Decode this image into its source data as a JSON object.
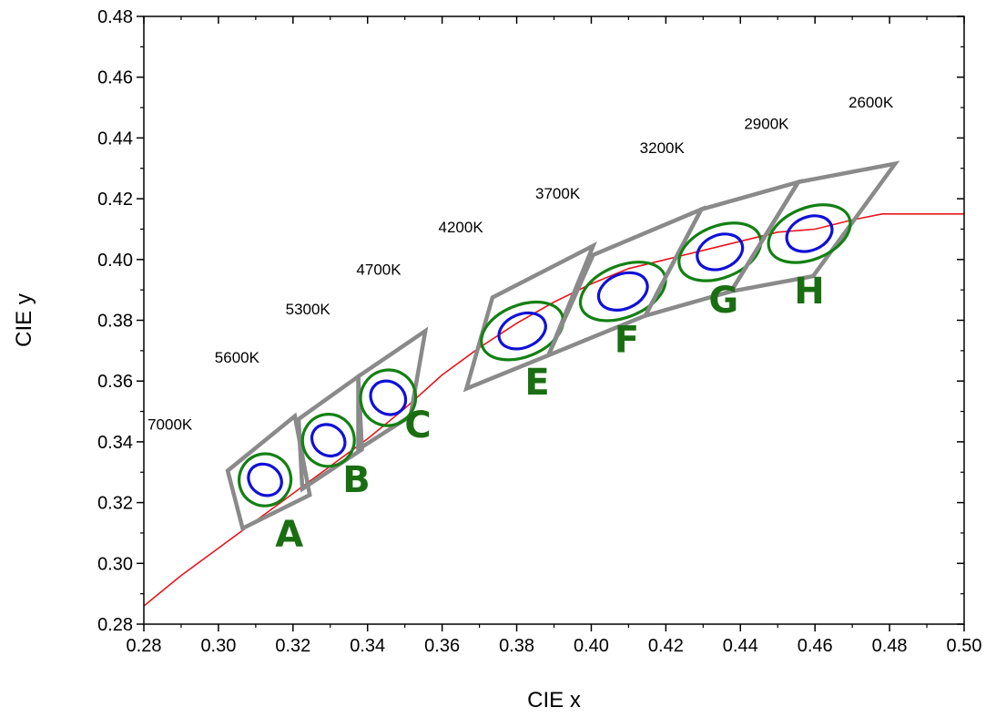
{
  "chart_data": {
    "type": "scatter",
    "title": "",
    "xlabel": "CIE x",
    "ylabel": "CIE y",
    "xlim": [
      0.28,
      0.5
    ],
    "ylim": [
      0.28,
      0.48
    ],
    "x_ticks": [
      "0.28",
      "0.30",
      "0.32",
      "0.34",
      "0.36",
      "0.38",
      "0.40",
      "0.42",
      "0.44",
      "0.46",
      "0.48",
      "0.50"
    ],
    "y_ticks": [
      "0.28",
      "0.30",
      "0.32",
      "0.34",
      "0.36",
      "0.38",
      "0.40",
      "0.42",
      "0.44",
      "0.46",
      "0.48"
    ],
    "grid": false,
    "colors": {
      "locus": "#e8141c",
      "bin_outline": "#8a8a8a",
      "outer_ellipse": "#138013",
      "inner_ellipse": "#1010d8",
      "bin_letter": "#1a6e12"
    },
    "locus_curve": {
      "x": [
        0.28,
        0.29,
        0.3,
        0.31,
        0.32,
        0.33,
        0.34,
        0.35,
        0.36,
        0.37,
        0.38,
        0.39,
        0.4,
        0.41,
        0.42,
        0.43,
        0.44,
        0.45,
        0.46,
        0.47,
        0.478,
        0.5
      ],
      "y": [
        0.286,
        0.296,
        0.305,
        0.314,
        0.323,
        0.332,
        0.341,
        0.351,
        0.362,
        0.371,
        0.379,
        0.386,
        0.392,
        0.397,
        0.4,
        0.403,
        0.406,
        0.409,
        0.41,
        0.413,
        0.415,
        0.415
      ]
    },
    "cct_labels": [
      {
        "text": "7000K",
        "x": 0.287,
        "y": 0.344
      },
      {
        "text": "5600K",
        "x": 0.305,
        "y": 0.366
      },
      {
        "text": "5300K",
        "x": 0.324,
        "y": 0.382
      },
      {
        "text": "4700K",
        "x": 0.343,
        "y": 0.395
      },
      {
        "text": "4200K",
        "x": 0.365,
        "y": 0.409
      },
      {
        "text": "3700K",
        "x": 0.391,
        "y": 0.42
      },
      {
        "text": "3200K",
        "x": 0.419,
        "y": 0.435
      },
      {
        "text": "2900K",
        "x": 0.447,
        "y": 0.443
      },
      {
        "text": "2600K",
        "x": 0.475,
        "y": 0.45
      }
    ],
    "bins": [
      {
        "label": "A",
        "label_xy": [
          0.319,
          0.3055
        ],
        "quad": [
          [
            0.3025,
            0.3305
          ],
          [
            0.3205,
            0.3485
          ],
          [
            0.3245,
            0.3225
          ],
          [
            0.3065,
            0.3115
          ]
        ],
        "center": [
          0.3125,
          0.3275
        ],
        "outer_axes": [
          0.007,
          0.0085
        ],
        "inner_axes": [
          0.004,
          0.0057
        ],
        "tilt": -55
      },
      {
        "label": "B",
        "label_xy": [
          0.337,
          0.3235
        ],
        "quad": [
          [
            0.3215,
            0.3475
          ],
          [
            0.3375,
            0.3615
          ],
          [
            0.3385,
            0.3375
          ],
          [
            0.3225,
            0.3245
          ]
        ],
        "center": [
          0.3295,
          0.3405
        ],
        "outer_axes": [
          0.007,
          0.0085
        ],
        "inner_axes": [
          0.004,
          0.0057
        ],
        "tilt": -55
      },
      {
        "label": "C",
        "label_xy": [
          0.3535,
          0.3415
        ],
        "quad": [
          [
            0.3375,
            0.3615
          ],
          [
            0.3555,
            0.3765
          ],
          [
            0.3515,
            0.3485
          ],
          [
            0.3375,
            0.3375
          ]
        ],
        "center": [
          0.3455,
          0.3545
        ],
        "outer_axes": [
          0.0075,
          0.009
        ],
        "inner_axes": [
          0.0043,
          0.006
        ],
        "tilt": -55
      },
      {
        "label": "E",
        "label_xy": [
          0.3855,
          0.3555
        ],
        "quad": [
          [
            0.3735,
            0.3875
          ],
          [
            0.4005,
            0.4045
          ],
          [
            0.3885,
            0.3685
          ],
          [
            0.3665,
            0.3575
          ]
        ],
        "center": [
          0.3815,
          0.3765
        ],
        "outer_axes": [
          0.0115,
          0.0085
        ],
        "inner_axes": [
          0.0065,
          0.0055
        ],
        "tilt": -22
      },
      {
        "label": "F",
        "label_xy": [
          0.4095,
          0.3695
        ],
        "quad": [
          [
            0.4005,
            0.4015
          ],
          [
            0.4295,
            0.4165
          ],
          [
            0.4145,
            0.3815
          ],
          [
            0.3885,
            0.3685
          ]
        ],
        "center": [
          0.4085,
          0.3895
        ],
        "outer_axes": [
          0.012,
          0.0085
        ],
        "inner_axes": [
          0.0068,
          0.0057
        ],
        "tilt": -22
      },
      {
        "label": "G",
        "label_xy": [
          0.4355,
          0.3825
        ],
        "quad": [
          [
            0.4295,
            0.4165
          ],
          [
            0.4555,
            0.4255
          ],
          [
            0.4375,
            0.3895
          ],
          [
            0.4145,
            0.3815
          ]
        ],
        "center": [
          0.4345,
          0.4025
        ],
        "outer_axes": [
          0.0115,
          0.0085
        ],
        "inner_axes": [
          0.0063,
          0.0055
        ],
        "tilt": -22
      },
      {
        "label": "H",
        "label_xy": [
          0.4585,
          0.3855
        ],
        "quad": [
          [
            0.4555,
            0.4255
          ],
          [
            0.4815,
            0.4315
          ],
          [
            0.4595,
            0.3945
          ],
          [
            0.4375,
            0.3895
          ]
        ],
        "center": [
          0.4585,
          0.4085
        ],
        "outer_axes": [
          0.0115,
          0.0085
        ],
        "inner_axes": [
          0.0063,
          0.0055
        ],
        "tilt": -22
      }
    ]
  }
}
